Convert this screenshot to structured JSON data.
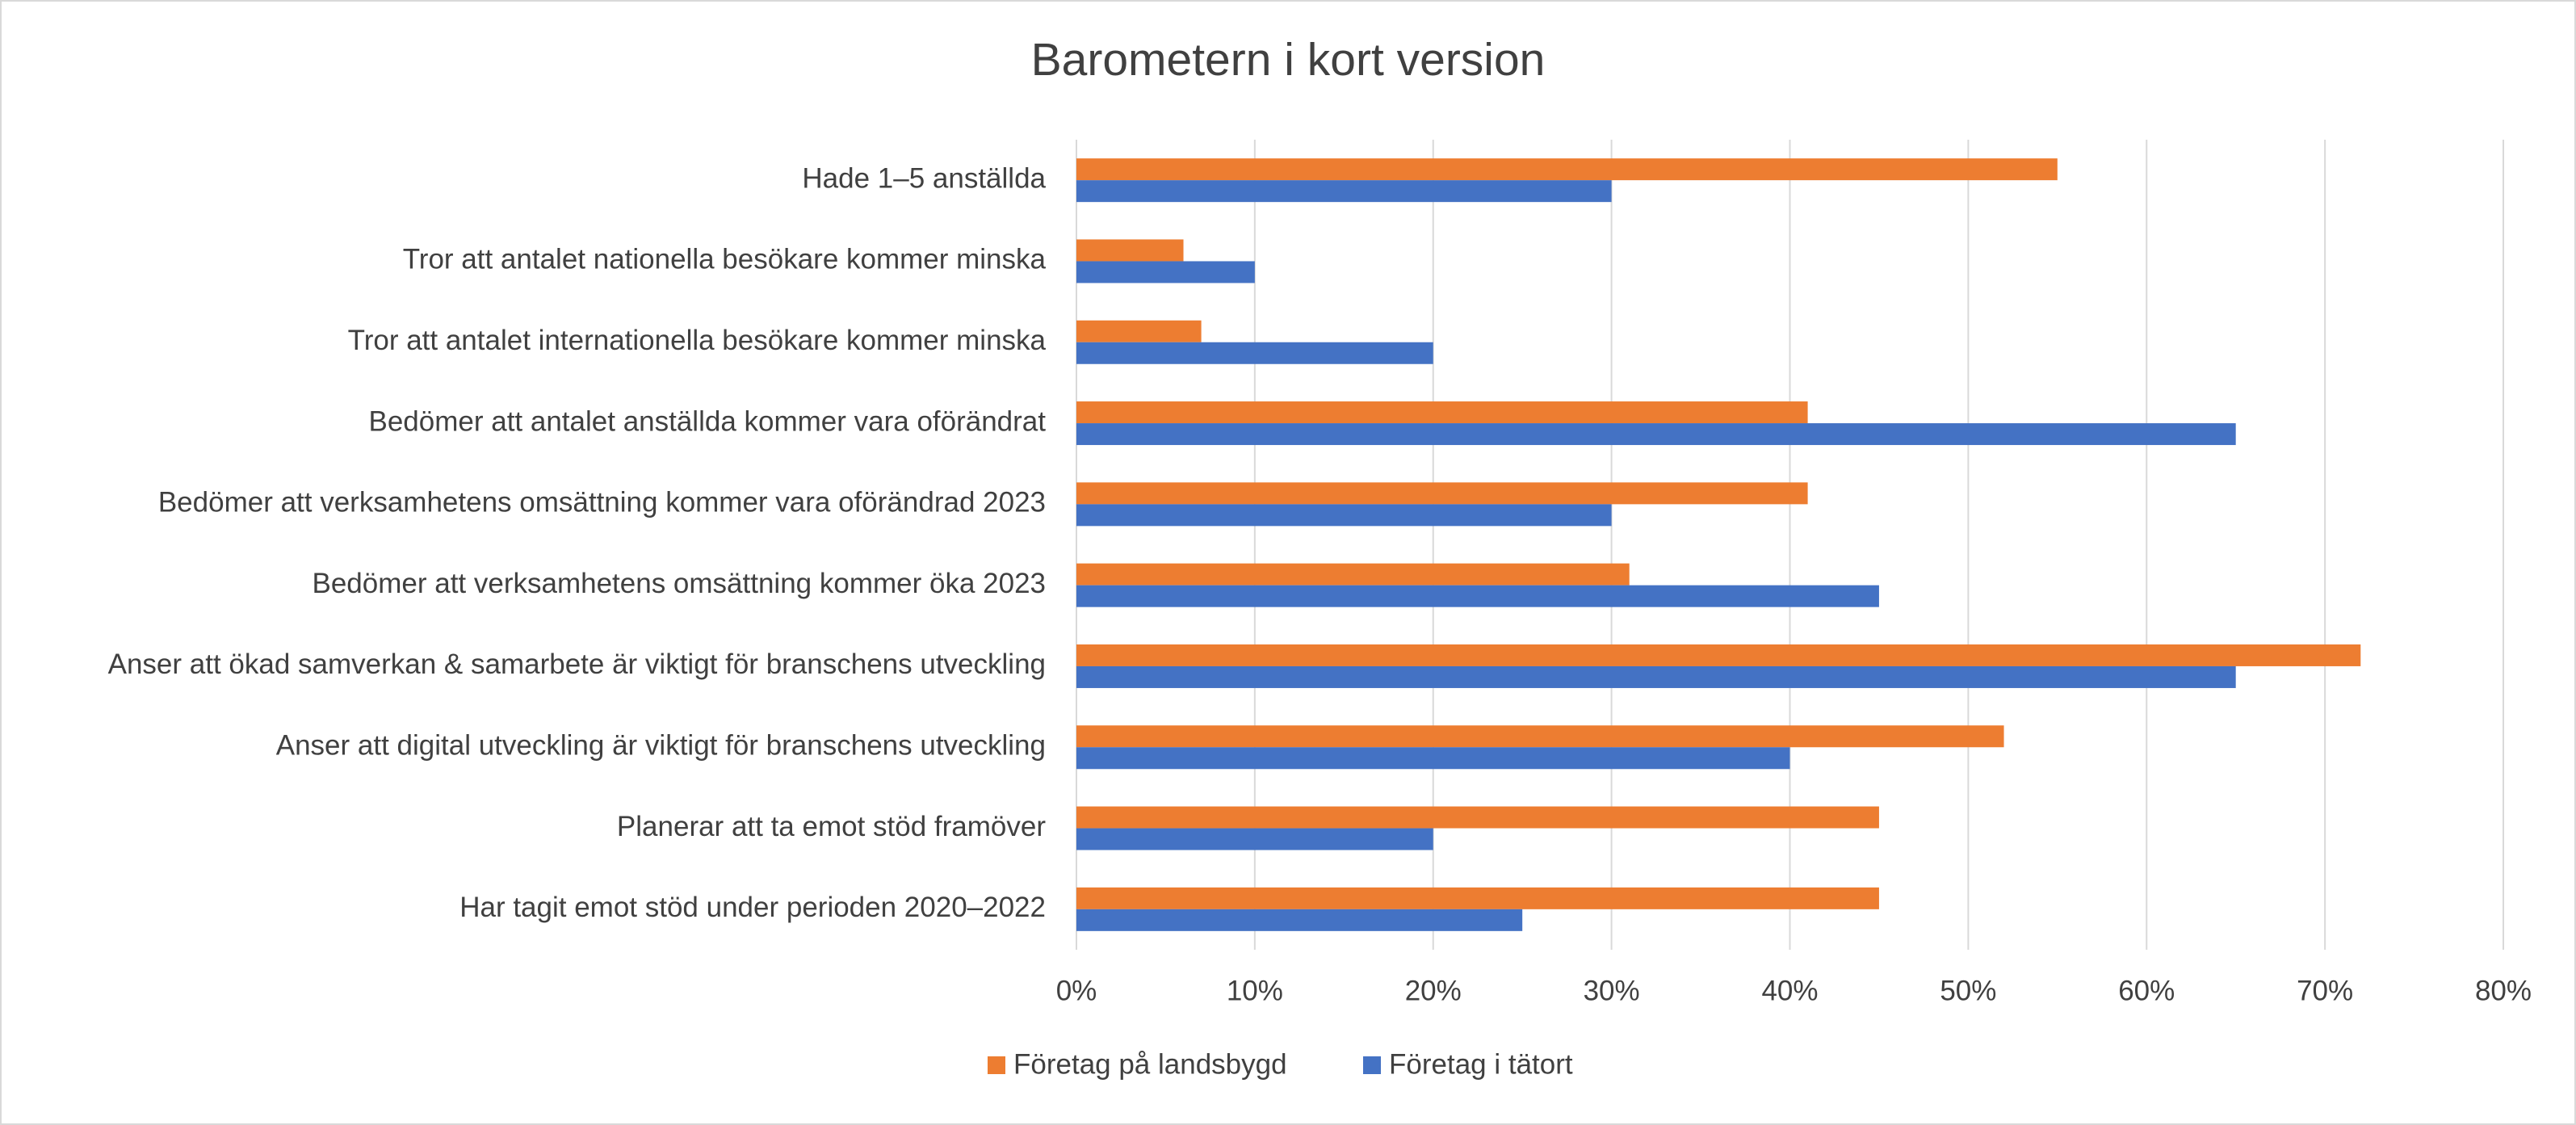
{
  "chart_data": {
    "type": "hbar",
    "title": "Barometern i kort version",
    "categories": [
      "Hade 1–5 anställda",
      "Tror att antalet nationella besökare kommer minska",
      "Tror att antalet internationella besökare kommer minska",
      "Bedömer att antalet anställda kommer vara oförändrat",
      "Bedömer att verksamhetens omsättning kommer vara oförändrad 2023",
      "Bedömer att verksamhetens omsättning kommer öka 2023",
      "Anser att ökad samverkan & samarbete är viktigt för branschens utveckling",
      "Anser att digital utveckling är viktigt för branschens utveckling",
      "Planerar att ta emot stöd framöver",
      "Har tagit emot stöd under perioden 2020–2022"
    ],
    "series": [
      {
        "name": "Företag på landsbygd",
        "color": "#ed7d31",
        "values": [
          55,
          6,
          7,
          41,
          41,
          31,
          72,
          52,
          45,
          45
        ]
      },
      {
        "name": "Företag i tätort",
        "color": "#4472c4",
        "values": [
          30,
          10,
          20,
          65,
          30,
          45,
          65,
          40,
          20,
          25
        ]
      }
    ],
    "xlim": [
      0,
      80
    ],
    "xticks": [
      {
        "value": 0,
        "label": "0%"
      },
      {
        "value": 10,
        "label": "10%"
      },
      {
        "value": 20,
        "label": "20%"
      },
      {
        "value": 30,
        "label": "30%"
      },
      {
        "value": 40,
        "label": "40%"
      },
      {
        "value": 50,
        "label": "50%"
      },
      {
        "value": 60,
        "label": "60%"
      },
      {
        "value": 70,
        "label": "70%"
      },
      {
        "value": 80,
        "label": "80%"
      }
    ],
    "grid": true
  }
}
